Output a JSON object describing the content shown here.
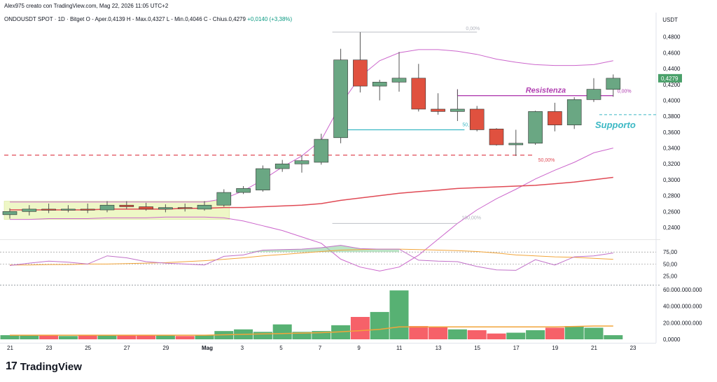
{
  "header": {
    "credit": "Alex975 creato con TradingView.com, Mag 22, 2026 11:05 UTC+2",
    "symbol": "ONDOUSDT SPOT · 1D · Bitget",
    "ohlc": "O - Aper.0,4139  H - Max.0,4327  L - Min.0,4046  C - Chius.0,4279",
    "change": "+0,0140 (+3,38%)"
  },
  "price_unit": "USDT",
  "brand": {
    "logo": "17",
    "name": "TradingView"
  },
  "annotations": {
    "resistance": "Resistenza",
    "support": "Supporto",
    "fib_0": "0,00%",
    "fib_50a": "50,",
    "fib_50b": "50,00%",
    "fib_100": "100,00%",
    "fib_0b": "0,00%"
  },
  "colors": {
    "up": "#6aa783",
    "down": "#e0513f",
    "ema": "#e04a55",
    "bb": "#cc66cc",
    "support": "#3bb8c4",
    "resistance": "#b13fb1",
    "volume_up": "#3aa35a",
    "volume_down": "#f5454f",
    "rsi": "#c170c8",
    "rsi_ma": "#f2a53a",
    "highlight": "#eef7c6",
    "last_price": "#4aa06a"
  },
  "chart_data": [
    {
      "type": "candlestick",
      "title": "ONDOUSDT SPOT · 1D · Bitget",
      "ylabel": "USDT",
      "ylim": [
        0.225,
        0.493
      ],
      "x_ticks": [
        "21",
        "23",
        "25",
        "27",
        "29",
        "Mag",
        "3",
        "5",
        "7",
        "9",
        "11",
        "13",
        "15",
        "17",
        "19",
        "21",
        "23"
      ],
      "y_ticks": [
        "0,2400",
        "0,2600",
        "0,2800",
        "0,3000",
        "0,3200",
        "0,3400",
        "0,3600",
        "0,3800",
        "0,4000",
        "0,4200",
        "0,4400",
        "0,4600",
        "0,4800"
      ],
      "last_price": "0,4279",
      "candles": [
        {
          "date": "Apr 21",
          "o": 0.256,
          "h": 0.264,
          "l": 0.251,
          "c": 0.26
        },
        {
          "date": "Apr 22",
          "o": 0.26,
          "h": 0.268,
          "l": 0.255,
          "c": 0.263
        },
        {
          "date": "Apr 23",
          "o": 0.263,
          "h": 0.27,
          "l": 0.258,
          "c": 0.262
        },
        {
          "date": "Apr 24",
          "o": 0.262,
          "h": 0.268,
          "l": 0.259,
          "c": 0.263
        },
        {
          "date": "Apr 25",
          "o": 0.263,
          "h": 0.27,
          "l": 0.258,
          "c": 0.262
        },
        {
          "date": "Apr 26",
          "o": 0.262,
          "h": 0.273,
          "l": 0.259,
          "c": 0.268
        },
        {
          "date": "Apr 27",
          "o": 0.268,
          "h": 0.273,
          "l": 0.263,
          "c": 0.266
        },
        {
          "date": "Apr 28",
          "o": 0.266,
          "h": 0.271,
          "l": 0.261,
          "c": 0.263
        },
        {
          "date": "Apr 29",
          "o": 0.263,
          "h": 0.269,
          "l": 0.259,
          "c": 0.265
        },
        {
          "date": "Apr 30",
          "o": 0.265,
          "h": 0.27,
          "l": 0.26,
          "c": 0.264
        },
        {
          "date": "May 1",
          "o": 0.263,
          "h": 0.273,
          "l": 0.261,
          "c": 0.268
        },
        {
          "date": "May 2",
          "o": 0.268,
          "h": 0.288,
          "l": 0.266,
          "c": 0.284
        },
        {
          "date": "May 3",
          "o": 0.284,
          "h": 0.292,
          "l": 0.282,
          "c": 0.289
        },
        {
          "date": "May 4",
          "o": 0.287,
          "h": 0.318,
          "l": 0.285,
          "c": 0.314
        },
        {
          "date": "May 5",
          "o": 0.314,
          "h": 0.325,
          "l": 0.31,
          "c": 0.32
        },
        {
          "date": "May 6",
          "o": 0.32,
          "h": 0.331,
          "l": 0.309,
          "c": 0.324
        },
        {
          "date": "May 7",
          "o": 0.322,
          "h": 0.358,
          "l": 0.319,
          "c": 0.351
        },
        {
          "date": "May 8",
          "o": 0.353,
          "h": 0.465,
          "l": 0.346,
          "c": 0.451
        },
        {
          "date": "May 9",
          "o": 0.451,
          "h": 0.486,
          "l": 0.41,
          "c": 0.418
        },
        {
          "date": "May 10",
          "o": 0.418,
          "h": 0.426,
          "l": 0.4,
          "c": 0.423
        },
        {
          "date": "May 11",
          "o": 0.423,
          "h": 0.461,
          "l": 0.411,
          "c": 0.428
        },
        {
          "date": "May 12",
          "o": 0.428,
          "h": 0.446,
          "l": 0.386,
          "c": 0.389
        },
        {
          "date": "May 13",
          "o": 0.389,
          "h": 0.409,
          "l": 0.382,
          "c": 0.386
        },
        {
          "date": "May 14",
          "o": 0.386,
          "h": 0.414,
          "l": 0.374,
          "c": 0.389
        },
        {
          "date": "May 15",
          "o": 0.389,
          "h": 0.393,
          "l": 0.361,
          "c": 0.363
        },
        {
          "date": "May 16",
          "o": 0.364,
          "h": 0.365,
          "l": 0.343,
          "c": 0.344
        },
        {
          "date": "May 17",
          "o": 0.344,
          "h": 0.363,
          "l": 0.33,
          "c": 0.346
        },
        {
          "date": "May 18",
          "o": 0.346,
          "h": 0.387,
          "l": 0.344,
          "c": 0.386
        },
        {
          "date": "May 19",
          "o": 0.386,
          "h": 0.397,
          "l": 0.361,
          "c": 0.369
        },
        {
          "date": "May 20",
          "o": 0.369,
          "h": 0.404,
          "l": 0.364,
          "c": 0.401
        },
        {
          "date": "May 21",
          "o": 0.401,
          "h": 0.428,
          "l": 0.398,
          "c": 0.414
        },
        {
          "date": "May 22",
          "o": 0.4139,
          "h": 0.4327,
          "l": 0.4046,
          "c": 0.4279
        }
      ],
      "ema": [
        0.262,
        0.262,
        0.262,
        0.262,
        0.262,
        0.263,
        0.263,
        0.263,
        0.263,
        0.264,
        0.264,
        0.265,
        0.265,
        0.266,
        0.267,
        0.268,
        0.27,
        0.274,
        0.277,
        0.28,
        0.283,
        0.285,
        0.287,
        0.289,
        0.29,
        0.291,
        0.292,
        0.293,
        0.295,
        0.297,
        0.3,
        0.303
      ],
      "bb_upper": [
        0.272,
        0.272,
        0.272,
        0.272,
        0.272,
        0.272,
        0.272,
        0.272,
        0.272,
        0.272,
        0.272,
        0.276,
        0.286,
        0.3,
        0.316,
        0.33,
        0.35,
        0.395,
        0.43,
        0.45,
        0.46,
        0.464,
        0.464,
        0.462,
        0.458,
        0.452,
        0.448,
        0.445,
        0.444,
        0.444,
        0.445,
        0.45
      ],
      "bb_lower": [
        0.25,
        0.25,
        0.251,
        0.251,
        0.251,
        0.252,
        0.252,
        0.252,
        0.253,
        0.253,
        0.253,
        0.252,
        0.248,
        0.242,
        0.236,
        0.228,
        0.22,
        0.2,
        0.19,
        0.185,
        0.19,
        0.205,
        0.225,
        0.245,
        0.262,
        0.276,
        0.288,
        0.301,
        0.312,
        0.322,
        0.334,
        0.34
      ],
      "levels": [
        {
          "name": "Resistenza",
          "value": 0.406
        },
        {
          "name": "Supporto",
          "value": 0.382
        },
        {
          "name": "red dashed",
          "value": 0.331
        },
        {
          "name": "fib 50%",
          "value": 0.363
        },
        {
          "name": "fib 0%",
          "value": 0.486
        },
        {
          "name": "fib 100%",
          "value": 0.245
        }
      ]
    },
    {
      "type": "line",
      "title": "RSI",
      "ylim": [
        10,
        100
      ],
      "y_ticks": [
        "75,00",
        "50,00",
        "25,00"
      ],
      "series": [
        {
          "values": [
            47,
            52,
            56,
            54,
            50,
            67,
            63,
            55,
            52,
            50,
            48,
            66,
            69,
            79,
            80,
            81,
            84,
            89,
            82,
            81,
            81,
            58,
            56,
            55,
            45,
            38,
            37,
            59,
            48,
            65,
            67,
            73
          ]
        },
        {
          "values": [
            48,
            48,
            49,
            49,
            50,
            50,
            51,
            52,
            53,
            55,
            57,
            60,
            63,
            67,
            70,
            73,
            76,
            79,
            80,
            81,
            81,
            80,
            79,
            78,
            76,
            73,
            69,
            67,
            65,
            64,
            62,
            60
          ]
        }
      ]
    },
    {
      "type": "bar",
      "title": "Volume",
      "ylim": [
        0,
        65000000000
      ],
      "y_ticks": [
        "60.000.000.000",
        "40.000.000.000",
        "20.000.000.000",
        "0,0000"
      ],
      "values": [
        5000000000,
        5000000000,
        5000000000,
        4000000000,
        5000000000,
        5000000000,
        5000000000,
        5000000000,
        5000000000,
        4000000000,
        5000000000,
        10000000000,
        12000000000,
        9000000000,
        18000000000,
        9000000000,
        10000000000,
        17000000000,
        27000000000,
        33000000000,
        59000000000,
        16000000000,
        15000000000,
        12000000000,
        11000000000,
        7000000000,
        8000000000,
        11000000000,
        14000000000,
        16000000000,
        14000000000,
        5000000000
      ],
      "ma": [
        5000000000,
        5000000000,
        5000000000,
        5000000000,
        5000000000,
        5000000000,
        5000000000,
        5000000000,
        5000000000,
        5000000000,
        5000000000,
        5500000000,
        6000000000,
        6500000000,
        7000000000,
        7500000000,
        8000000000,
        9000000000,
        10500000000,
        12000000000,
        15000000000,
        15000000000,
        15000000000,
        15000000000,
        15000000000,
        15000000000,
        15000000000,
        15000000000,
        15000000000,
        15500000000,
        16000000000,
        16000000000
      ]
    }
  ]
}
